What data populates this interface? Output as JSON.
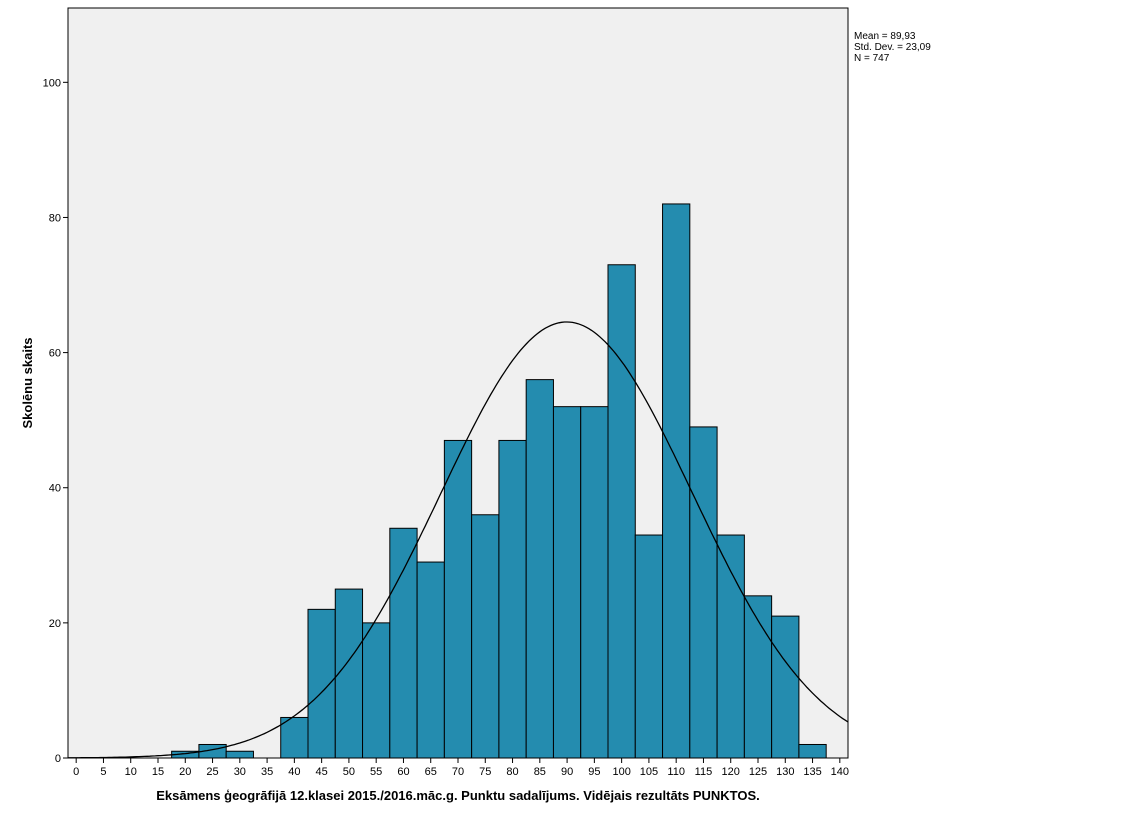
{
  "chart_data": {
    "type": "bar",
    "subtype": "histogram",
    "xlabel": "Eksāmens ģeogrāfijā 12.klasei 2015./2016.māc.g. Punktu sadalījums. Vidējais rezultāts PUNKTOS.",
    "ylabel": "Skolēnu skaits",
    "bin_width": 5,
    "bin_centers": [
      20,
      25,
      30,
      35,
      40,
      45,
      50,
      55,
      60,
      65,
      70,
      75,
      80,
      85,
      90,
      95,
      100,
      105,
      110,
      115,
      120,
      125,
      130,
      135
    ],
    "values": [
      1,
      2,
      1,
      0,
      6,
      22,
      25,
      20,
      34,
      29,
      47,
      36,
      47,
      56,
      52,
      52,
      73,
      33,
      82,
      49,
      33,
      24,
      21,
      2
    ],
    "xlim": [
      -1.5,
      141.5
    ],
    "ylim": [
      0,
      111
    ],
    "xticks": [
      0,
      5,
      10,
      15,
      20,
      25,
      30,
      35,
      40,
      45,
      50,
      55,
      60,
      65,
      70,
      75,
      80,
      85,
      90,
      95,
      100,
      105,
      110,
      115,
      120,
      125,
      130,
      135,
      140
    ],
    "yticks": [
      0,
      20,
      40,
      60,
      80,
      100
    ],
    "normal_curve": {
      "mean": 89.93,
      "sd": 23.09,
      "n": 747
    },
    "stats_text": [
      "Mean = 89,93",
      "Std. Dev. = 23,09",
      "N = 747"
    ],
    "colors": {
      "bar": "#248caf",
      "plot_bg": "#f0f0f0",
      "curve": "#000000"
    }
  }
}
